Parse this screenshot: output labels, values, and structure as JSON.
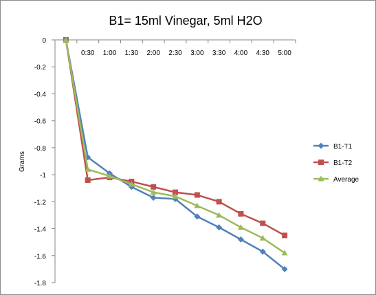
{
  "chart_data": {
    "type": "line",
    "title": "B1= 15ml Vinegar, 5ml H2O",
    "xlabel": "",
    "ylabel": "Grams",
    "categories": [
      "",
      "0:30",
      "1:00",
      "1:30",
      "2:00",
      "2:30",
      "3:00",
      "3:30",
      "4:00",
      "4:30",
      "5:00"
    ],
    "ylim": [
      -1.8,
      0
    ],
    "yticks": [
      0,
      -0.2,
      -0.4,
      -0.6,
      -0.8,
      -1,
      -1.2,
      -1.4,
      -1.6,
      -1.8
    ],
    "grid": false,
    "legend_position": "right",
    "series": [
      {
        "name": "B1-T1",
        "color": "#4f81bd",
        "marker": "diamond",
        "values": [
          0,
          -0.87,
          -0.99,
          -1.09,
          -1.17,
          -1.18,
          -1.31,
          -1.39,
          -1.48,
          -1.57,
          -1.7
        ]
      },
      {
        "name": "B1-T2",
        "color": "#c0504d",
        "marker": "square",
        "values": [
          0,
          -1.04,
          -1.02,
          -1.05,
          -1.09,
          -1.13,
          -1.15,
          -1.2,
          -1.29,
          -1.36,
          -1.45
        ]
      },
      {
        "name": "Average",
        "color": "#9bbb59",
        "marker": "triangle",
        "values": [
          0,
          -0.96,
          -1.01,
          -1.07,
          -1.13,
          -1.16,
          -1.23,
          -1.3,
          -1.39,
          -1.47,
          -1.58
        ]
      }
    ]
  }
}
